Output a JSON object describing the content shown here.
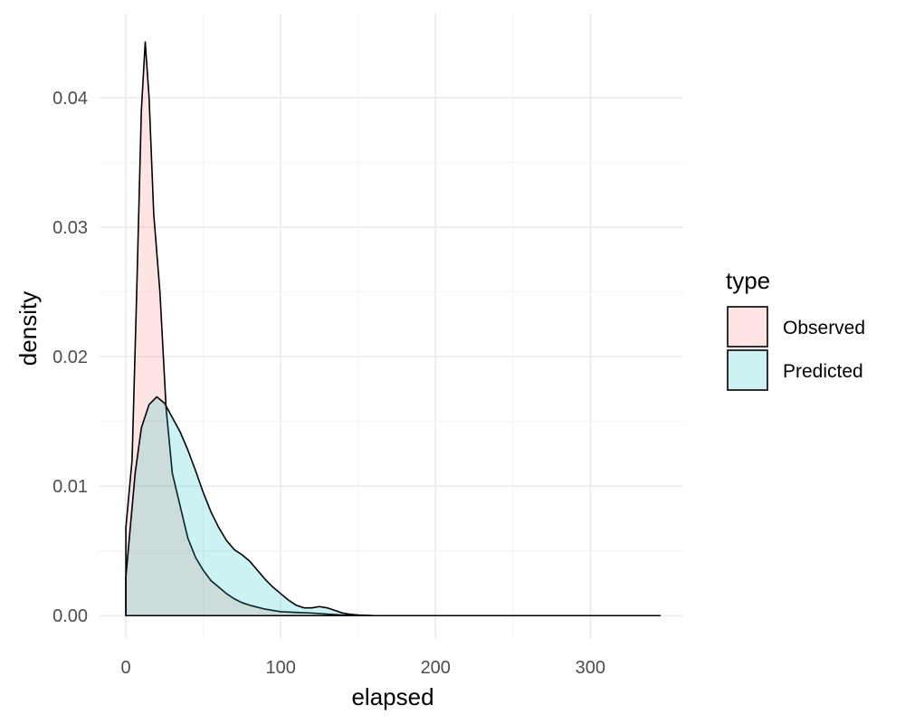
{
  "chart_data": {
    "type": "area",
    "subtype": "density",
    "title": "",
    "xlabel": "elapsed",
    "ylabel": "density",
    "xlim": [
      -17,
      360
    ],
    "ylim": [
      -0.0018,
      0.0465
    ],
    "x_ticks": [
      0,
      100,
      200,
      300
    ],
    "y_ticks": [
      0.0,
      0.01,
      0.02,
      0.03,
      0.04
    ],
    "x_tick_labels": [
      "0",
      "100",
      "200",
      "300"
    ],
    "y_tick_labels": [
      "0.00",
      "0.01",
      "0.02",
      "0.03",
      "0.04"
    ],
    "grid": true,
    "legend": {
      "title": "type",
      "position": "right",
      "entries": [
        "Observed",
        "Predicted"
      ]
    },
    "series": [
      {
        "name": "Observed",
        "fill": "#F8766D",
        "fill_opacity": 0.2,
        "points": [
          [
            0,
            0.0068
          ],
          [
            4,
            0.012
          ],
          [
            7,
            0.025
          ],
          [
            10,
            0.039
          ],
          [
            12.5,
            0.0443
          ],
          [
            15,
            0.04
          ],
          [
            18,
            0.031
          ],
          [
            22,
            0.025
          ],
          [
            26,
            0.016
          ],
          [
            30,
            0.011
          ],
          [
            35,
            0.0085
          ],
          [
            40,
            0.006
          ],
          [
            45,
            0.0045
          ],
          [
            50,
            0.0035
          ],
          [
            55,
            0.0027
          ],
          [
            60,
            0.0022
          ],
          [
            65,
            0.0017
          ],
          [
            70,
            0.0013
          ],
          [
            75,
            0.001
          ],
          [
            80,
            0.0008
          ],
          [
            90,
            0.0005
          ],
          [
            100,
            0.0003
          ],
          [
            110,
            0.00025
          ],
          [
            120,
            0.0002
          ],
          [
            130,
            0.00012
          ],
          [
            140,
            5e-05
          ],
          [
            150,
            2e-05
          ],
          [
            160,
            0.0
          ],
          [
            200,
            0.0
          ],
          [
            250,
            0.0
          ],
          [
            300,
            0.0
          ],
          [
            345,
            0.0
          ]
        ]
      },
      {
        "name": "Predicted",
        "fill": "#00BFC4",
        "fill_opacity": 0.2,
        "points": [
          [
            0,
            0.003
          ],
          [
            3,
            0.007
          ],
          [
            6,
            0.011
          ],
          [
            10,
            0.0145
          ],
          [
            15,
            0.0163
          ],
          [
            20,
            0.0169
          ],
          [
            25,
            0.0164
          ],
          [
            30,
            0.0153
          ],
          [
            35,
            0.0142
          ],
          [
            40,
            0.0128
          ],
          [
            45,
            0.0112
          ],
          [
            50,
            0.0095
          ],
          [
            55,
            0.008
          ],
          [
            60,
            0.0068
          ],
          [
            65,
            0.0058
          ],
          [
            70,
            0.0051
          ],
          [
            75,
            0.0047
          ],
          [
            80,
            0.0042
          ],
          [
            85,
            0.0035
          ],
          [
            90,
            0.0028
          ],
          [
            95,
            0.0022
          ],
          [
            100,
            0.0017
          ],
          [
            105,
            0.0012
          ],
          [
            110,
            0.0008
          ],
          [
            115,
            0.0006
          ],
          [
            120,
            0.0006
          ],
          [
            125,
            0.0007
          ],
          [
            130,
            0.0006
          ],
          [
            135,
            0.0004
          ],
          [
            140,
            0.0002
          ],
          [
            145,
            0.0001
          ],
          [
            150,
            5e-05
          ],
          [
            160,
            0.0
          ],
          [
            200,
            0.0
          ],
          [
            250,
            0.0
          ],
          [
            300,
            0.0
          ],
          [
            345,
            0.0
          ]
        ]
      }
    ]
  }
}
